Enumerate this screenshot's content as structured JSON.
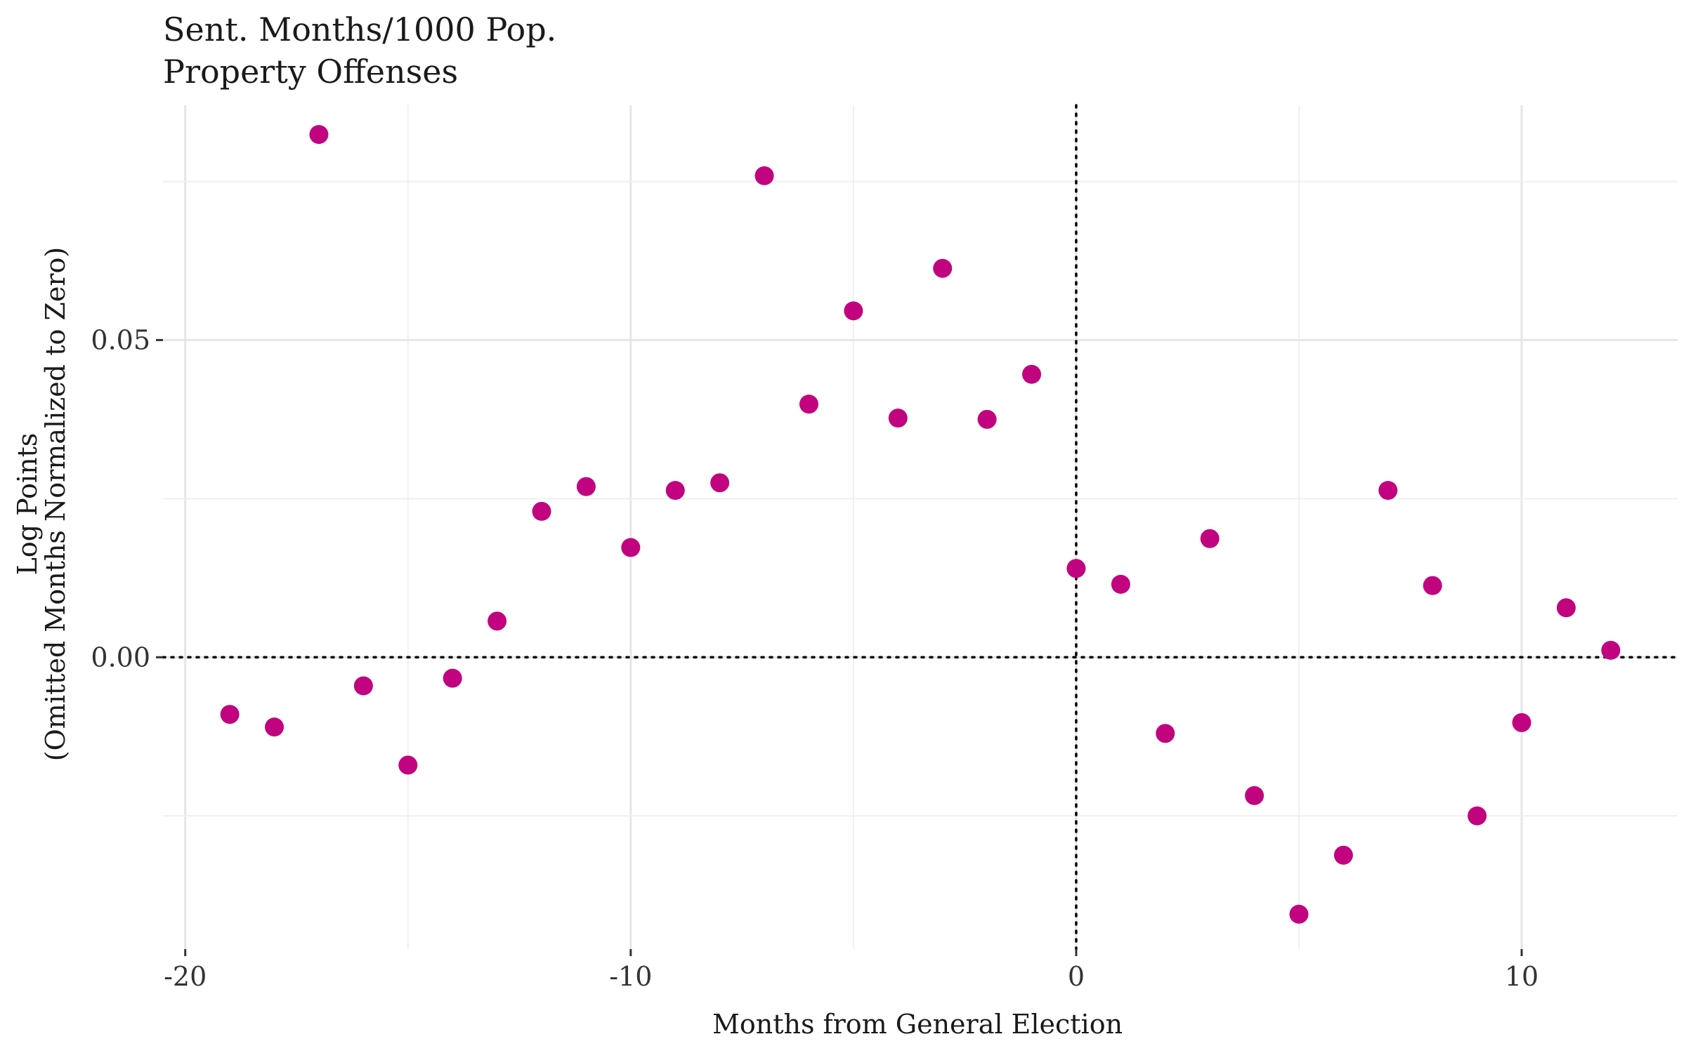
{
  "chart_data": {
    "type": "scatter",
    "title": "Sent. Months/1000 Pop.",
    "subtitle": "Property Offenses",
    "xlabel": "Months from General Election",
    "ylabel": "Log Points",
    "ylabel2": "(Omitted Months Normalized to Zero)",
    "xlim": [
      -20.5,
      13.5
    ],
    "ylim": [
      -0.046,
      0.087
    ],
    "x_ticks": [
      -20,
      -10,
      0,
      10
    ],
    "x_tick_labels": [
      "-20",
      "-10",
      "0",
      "10"
    ],
    "y_ticks": [
      0.0,
      0.05
    ],
    "y_tick_labels": [
      "0.00",
      "0.05"
    ],
    "reference_lines": {
      "x": 0,
      "y": 0
    },
    "grid": true,
    "point_color": "#C2037F",
    "x": [
      -19,
      -18,
      -17,
      -16,
      -15,
      -14,
      -13,
      -12,
      -11,
      -10,
      -9,
      -8,
      -7,
      -6,
      -5,
      -4,
      -3,
      -2,
      -1,
      0,
      1,
      2,
      3,
      4,
      5,
      6,
      7,
      8,
      9,
      10,
      11,
      12
    ],
    "y": [
      -0.009,
      -0.011,
      0.0824,
      -0.0045,
      -0.017,
      -0.0033,
      0.0057,
      0.023,
      0.0269,
      0.0173,
      0.0263,
      0.0275,
      0.0759,
      0.0399,
      0.0546,
      0.0377,
      0.0613,
      0.0375,
      0.0446,
      0.014,
      0.0115,
      -0.012,
      0.0187,
      -0.0218,
      -0.0405,
      -0.0312,
      0.0263,
      0.0113,
      -0.025,
      -0.0103,
      0.0078,
      0.0011
    ]
  }
}
